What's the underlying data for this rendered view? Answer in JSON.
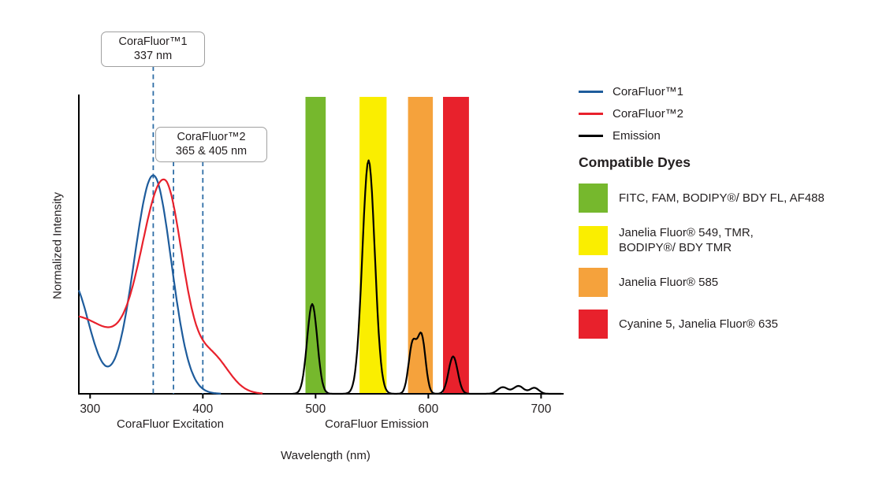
{
  "colors": {
    "text": "#231f20",
    "axis": "#000000",
    "marker_line": "#2e6da6",
    "callout_border": "#a0a0a0",
    "callout_bg": "#ffffff"
  },
  "chart_data": {
    "type": "line",
    "title": "",
    "xlabel": "Wavelength (nm)",
    "ylabel": "Normalized Intensity",
    "x_axis_section_labels": [
      "CoraFluor Excitation",
      "CoraFluor Emission"
    ],
    "x_domain_nm": [
      290,
      720
    ],
    "x_ticks_nm": [
      300,
      400,
      500,
      600,
      700
    ],
    "ylim": [
      0,
      1
    ],
    "grid": false,
    "legend_position": "right",
    "series": [
      {
        "name": "CoraFluor™1",
        "kind": "excitation",
        "color": "#1e5c9c",
        "range_nm": [
          290,
          416
        ],
        "peaks": [
          {
            "center": 356,
            "height": 0.73,
            "sigma_left": 17,
            "sigma_right": 16
          },
          {
            "center": 283,
            "height": 0.38,
            "sigma": 16
          }
        ]
      },
      {
        "name": "CoraFluor™2",
        "kind": "excitation",
        "color": "#e8212c",
        "range_nm": [
          290,
          453
        ],
        "peaks": [
          {
            "center": 366,
            "height": 0.68,
            "sigma_left": 20,
            "sigma_right": 16
          },
          {
            "center": 285,
            "height": 0.26,
            "sigma": 40
          },
          {
            "center": 408,
            "height": 0.12,
            "sigma": 15
          }
        ]
      },
      {
        "name": "Emission",
        "kind": "emission",
        "color": "#000000",
        "range_nm": [
          480,
          718
        ],
        "peaks": [
          {
            "center": 497,
            "height": 0.3,
            "sigma": 4.5
          },
          {
            "center": 547,
            "height": 0.78,
            "sigma": 5.5
          },
          {
            "center": 586,
            "height": 0.165,
            "sigma": 3.5
          },
          {
            "center": 594,
            "height": 0.19,
            "sigma": 3.5
          },
          {
            "center": 622,
            "height": 0.125,
            "sigma": 4
          },
          {
            "center": 666,
            "height": 0.022,
            "sigma": 4.5
          },
          {
            "center": 680,
            "height": 0.026,
            "sigma": 4.5
          },
          {
            "center": 694,
            "height": 0.02,
            "sigma": 4
          }
        ]
      }
    ],
    "bands": [
      {
        "name": "green",
        "color": "#76b82d",
        "range_nm": [
          491,
          509
        ],
        "dyes": "FITC, FAM, BODIPY®/ BDY FL, AF488"
      },
      {
        "name": "yellow",
        "color": "#faee00",
        "range_nm": [
          539,
          563
        ],
        "dyes": "Janelia Fluor® 549, TMR, BODIPY®/ BDY TMR"
      },
      {
        "name": "orange",
        "color": "#f5a23c",
        "range_nm": [
          582,
          604
        ],
        "dyes": "Janelia Fluor® 585"
      },
      {
        "name": "red",
        "color": "#e8212c",
        "range_nm": [
          613,
          636
        ],
        "dyes": "Cyanine 5, Janelia Fluor® 635"
      }
    ],
    "markers": [
      {
        "nm": 356,
        "annotation": 0
      },
      {
        "nm": 374,
        "annotation": 1
      },
      {
        "nm": 400,
        "annotation": 1
      }
    ],
    "annotations": [
      {
        "title": "CoraFluor™1",
        "subtitle": "337 nm",
        "labeled_nm": [
          337
        ]
      },
      {
        "title": "CoraFluor™2",
        "subtitle": "365 & 405 nm",
        "labeled_nm": [
          365,
          405
        ]
      }
    ]
  },
  "legend": {
    "series": [
      {
        "label": "CoraFluor™1",
        "color": "#1e5c9c"
      },
      {
        "label": "CoraFluor™2",
        "color": "#e8212c"
      },
      {
        "label": "Emission",
        "color": "#000000"
      }
    ],
    "dyes_heading": "Compatible Dyes",
    "dyes": [
      {
        "label": "FITC, FAM, BODIPY®/ BDY FL, AF488",
        "color": "#76b82d"
      },
      {
        "label": "Janelia Fluor® 549, TMR,\nBODIPY®/ BDY TMR",
        "color": "#faee00"
      },
      {
        "label": "Janelia Fluor® 585",
        "color": "#f5a23c"
      },
      {
        "label": "Cyanine 5, Janelia Fluor® 635",
        "color": "#e8212c"
      }
    ]
  }
}
